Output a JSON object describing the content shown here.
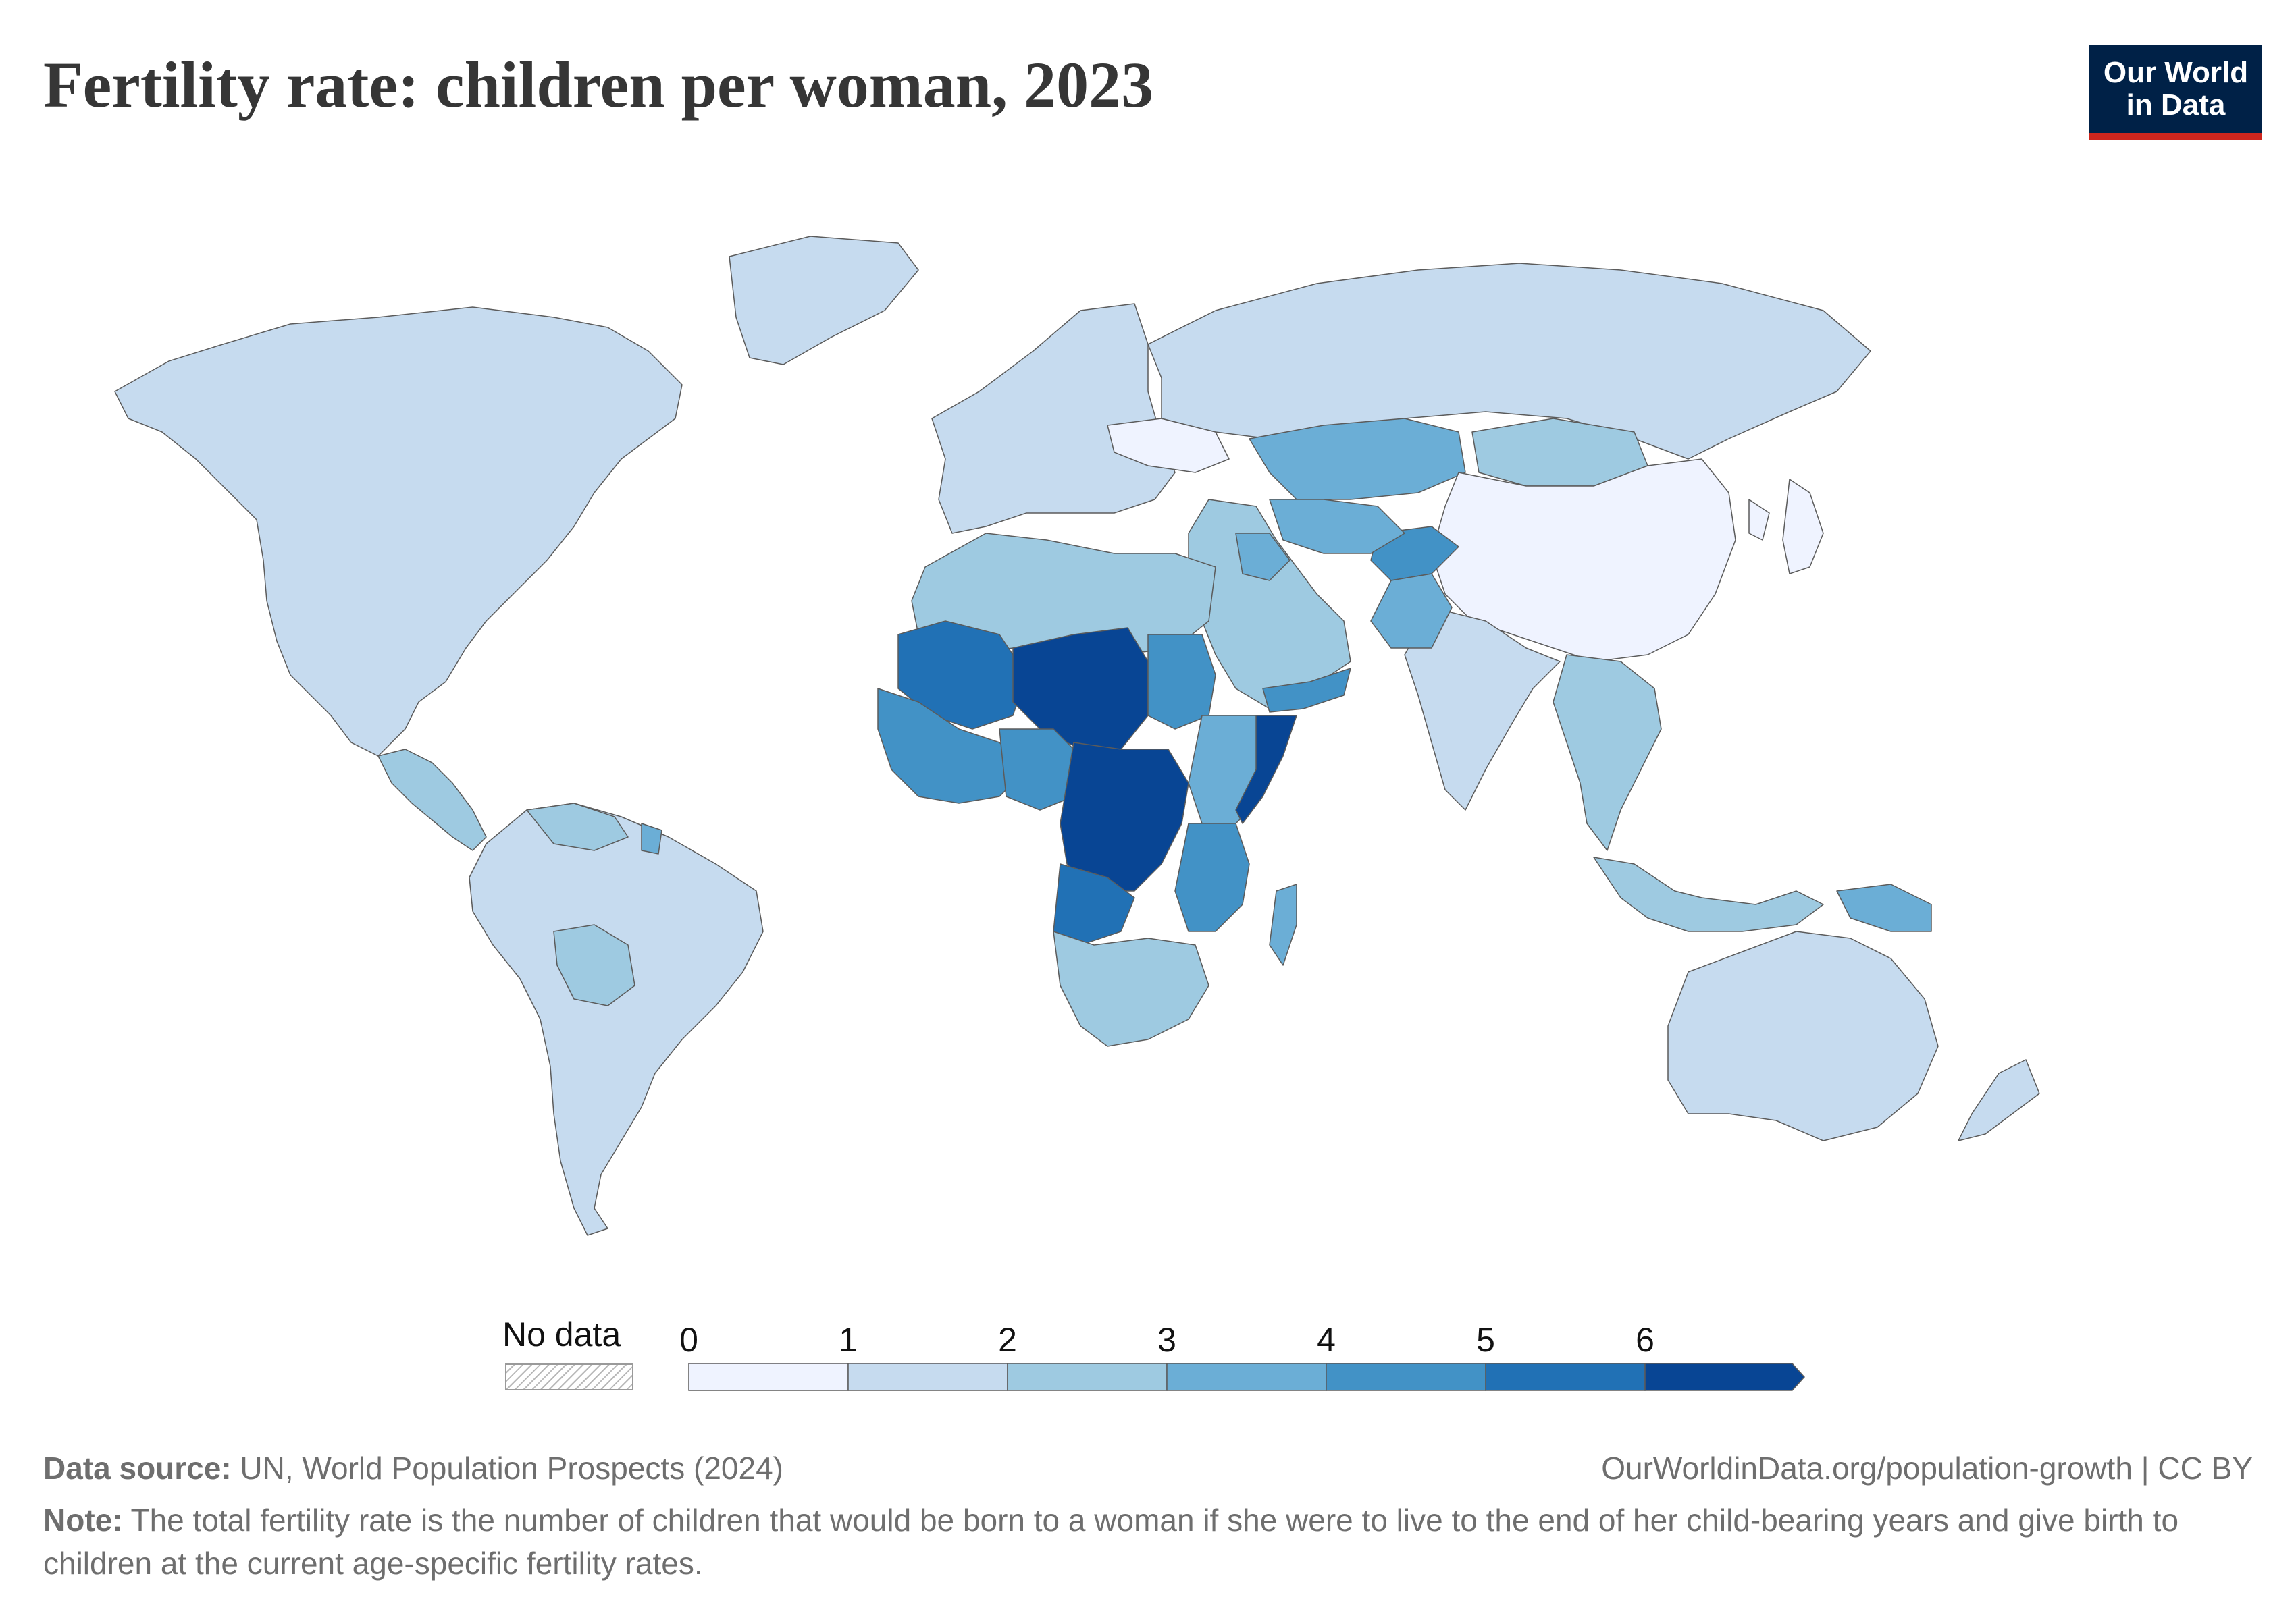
{
  "header": {
    "title": "Fertility rate: children per woman, 2023"
  },
  "logo": {
    "line1": "Our World",
    "line2": "in Data",
    "background_color": "#002147",
    "accent_color": "#ce261e"
  },
  "legend": {
    "no_data_label": "No data",
    "ticks": [
      "0",
      "1",
      "2",
      "3",
      "4",
      "5",
      "6"
    ],
    "bins": [
      {
        "from": 0,
        "to": 1,
        "color": "#eff3ff"
      },
      {
        "from": 1,
        "to": 2,
        "color": "#c6dbef"
      },
      {
        "from": 2,
        "to": 3,
        "color": "#9ecae1"
      },
      {
        "from": 3,
        "to": 4,
        "color": "#6baed6"
      },
      {
        "from": 4,
        "to": 5,
        "color": "#4292c6"
      },
      {
        "from": 5,
        "to": 6,
        "color": "#2171b5"
      },
      {
        "from": 6,
        "to": null,
        "color": "#084594"
      }
    ]
  },
  "map_data": {
    "layers": [
      {
        "name": "North America",
        "bin": 1
      },
      {
        "name": "South America",
        "bin": 1
      },
      {
        "name": "Bolivia",
        "bin": 2
      },
      {
        "name": "Venezuela",
        "bin": 2
      },
      {
        "name": "French Guiana",
        "bin": 3
      },
      {
        "name": "Central America",
        "bin": 2
      },
      {
        "name": "Europe",
        "bin": 1
      },
      {
        "name": "Ukraine",
        "bin": 0
      },
      {
        "name": "Russia",
        "bin": 1
      },
      {
        "name": "Kazakhstan",
        "bin": 3
      },
      {
        "name": "Mongolia",
        "bin": 2
      },
      {
        "name": "China",
        "bin": 0
      },
      {
        "name": "Korea and Japan",
        "bin": 0
      },
      {
        "name": "India",
        "bin": 1
      },
      {
        "name": "Middle East",
        "bin": 2
      },
      {
        "name": "Iraq",
        "bin": 3
      },
      {
        "name": "Yemen",
        "bin": 4
      },
      {
        "name": "Afghanistan",
        "bin": 4
      },
      {
        "name": "Pakistan",
        "bin": 3
      },
      {
        "name": "Central Asia",
        "bin": 3
      },
      {
        "name": "Southeast Asia",
        "bin": 2
      },
      {
        "name": "Indonesia",
        "bin": 2
      },
      {
        "name": "Papua New Guinea",
        "bin": 3
      },
      {
        "name": "Australia",
        "bin": 1
      },
      {
        "name": "New Zealand",
        "bin": 1
      },
      {
        "name": "North Africa",
        "bin": 2
      },
      {
        "name": "Mauritania and Mali",
        "bin": 5
      },
      {
        "name": "Niger and Chad",
        "bin": 6
      },
      {
        "name": "West Africa",
        "bin": 4
      },
      {
        "name": "Nigeria and Cameroon",
        "bin": 4
      },
      {
        "name": "Sudan",
        "bin": 4
      },
      {
        "name": "Ethiopia and Kenya",
        "bin": 3
      },
      {
        "name": "Somalia",
        "bin": 6
      },
      {
        "name": "Central African Republic and DR Congo",
        "bin": 6
      },
      {
        "name": "Angola",
        "bin": 5
      },
      {
        "name": "East Africa",
        "bin": 4
      },
      {
        "name": "Southern Africa",
        "bin": 2
      },
      {
        "name": "Madagascar",
        "bin": 3
      }
    ]
  },
  "footer": {
    "source_label": "Data source:",
    "source_text": " UN, World Population Prospects (2024)",
    "url": "OurWorldinData.org/population-growth | CC BY",
    "note_label": "Note:",
    "note_text": " The total fertility rate is the number of children that would be born to a woman if she were to live to the end of her child-bearing years and give birth to children at the current age-specific fertility rates."
  }
}
